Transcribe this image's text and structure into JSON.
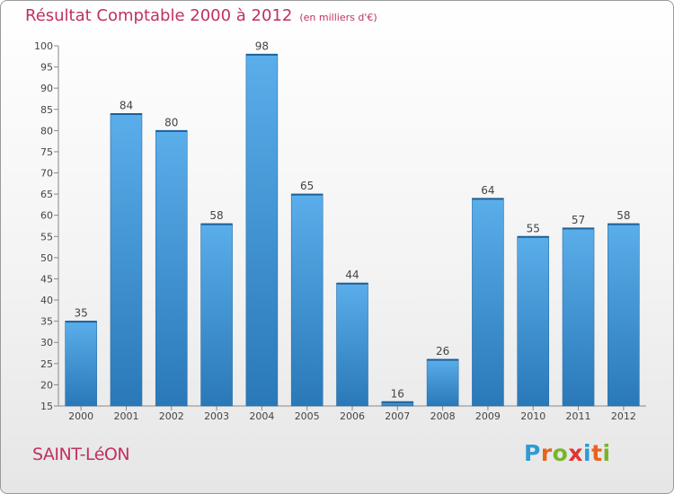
{
  "header": {
    "title": "Résultat Comptable 2000 à 2012",
    "subtitle": "(en milliers d'€)"
  },
  "footer": {
    "commune": "SAINT-LéON",
    "brand_letters": [
      "P",
      "r",
      "o",
      "x",
      "i",
      "t",
      "i"
    ],
    "brand_colors": [
      "#2e9ad6",
      "#e8641e",
      "#79b52b",
      "#e43333",
      "#2e9ad6",
      "#e8641e",
      "#79b52b"
    ]
  },
  "chart_data": {
    "type": "bar",
    "title": "Résultat Comptable 2000 à 2012",
    "subtitle": "(en milliers d'€)",
    "categories": [
      "2000",
      "2001",
      "2002",
      "2003",
      "2004",
      "2005",
      "2006",
      "2007",
      "2008",
      "2009",
      "2010",
      "2011",
      "2012"
    ],
    "values": [
      35,
      84,
      80,
      58,
      98,
      65,
      44,
      16,
      26,
      64,
      55,
      57,
      58
    ],
    "data_labels": [
      "35",
      "84",
      "80",
      "58",
      "98",
      "65",
      "44",
      "16",
      "26",
      "64",
      "55",
      "57",
      "58"
    ],
    "ylim": [
      15,
      100
    ],
    "yticks": [
      15,
      20,
      25,
      30,
      35,
      40,
      45,
      50,
      55,
      60,
      65,
      70,
      75,
      80,
      85,
      90,
      95,
      100
    ],
    "ytick_labels": [
      "15",
      "20",
      "25",
      "30",
      "35",
      "40",
      "45",
      "50",
      "55",
      "60",
      "65",
      "70",
      "75",
      "80",
      "85",
      "90",
      "95",
      "100"
    ],
    "xlabel": "",
    "ylabel": "",
    "grid": false,
    "bar_color_top": "#5aaeea",
    "bar_color_bottom": "#2a78b8"
  }
}
